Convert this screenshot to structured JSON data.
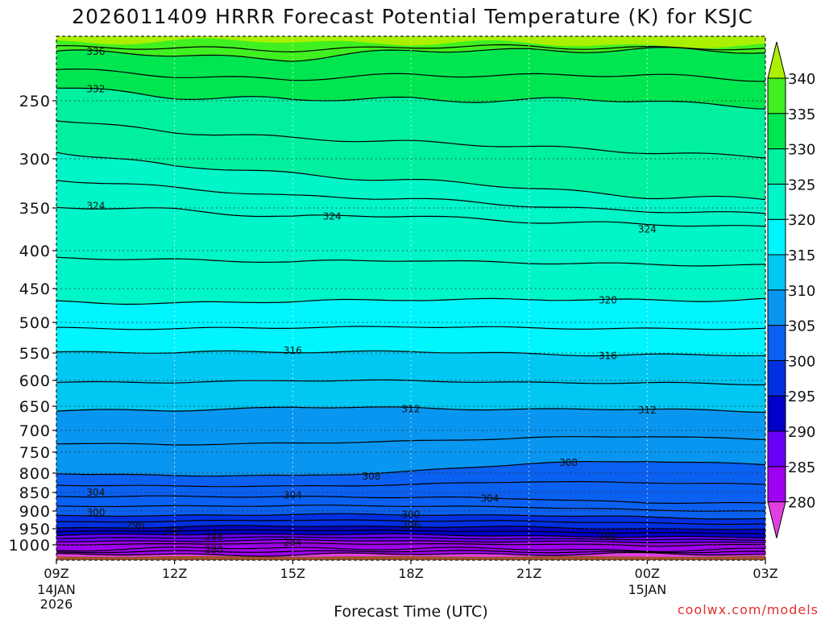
{
  "chart_data": {
    "type": "heatmap",
    "title": "2026011409 HRRR Forecast Potential Temperature (K) for KSJC",
    "xlabel": "Forecast Time (UTC)",
    "ylabel": "",
    "credit": "coolwx.com/models",
    "x_ticks": [
      {
        "hour": 0,
        "label": "09Z",
        "sub1": "14JAN",
        "sub2": "2026"
      },
      {
        "hour": 3,
        "label": "12Z",
        "sub1": "",
        "sub2": ""
      },
      {
        "hour": 6,
        "label": "15Z",
        "sub1": "",
        "sub2": ""
      },
      {
        "hour": 9,
        "label": "18Z",
        "sub1": "",
        "sub2": ""
      },
      {
        "hour": 12,
        "label": "21Z",
        "sub1": "",
        "sub2": ""
      },
      {
        "hour": 15,
        "label": "00Z",
        "sub1": "15JAN",
        "sub2": ""
      },
      {
        "hour": 18,
        "label": "03Z",
        "sub1": "",
        "sub2": ""
      }
    ],
    "y_ticks": [
      250,
      300,
      350,
      400,
      450,
      500,
      550,
      600,
      650,
      700,
      750,
      800,
      850,
      900,
      950,
      1000
    ],
    "xlim": [
      0,
      18
    ],
    "ylim_hpa": [
      1025,
      200
    ],
    "colorbar": {
      "levels": [
        275,
        280,
        285,
        290,
        295,
        300,
        305,
        310,
        315,
        320,
        325,
        330,
        335,
        340,
        345
      ],
      "labels": [
        280,
        285,
        290,
        295,
        300,
        305,
        310,
        315,
        320,
        325,
        330,
        335,
        340
      ],
      "colors": [
        "#e040e0",
        "#a000f0",
        "#6a00f8",
        "#0000c8",
        "#0030e0",
        "#0a60f0",
        "#0896f0",
        "#00c8f2",
        "#00f5ff",
        "#00f5c8",
        "#00f0a0",
        "#00e650",
        "#40f020",
        "#aaf000"
      ]
    },
    "ground_color": "#a0522d",
    "contour_labels": [
      {
        "value": "336",
        "hour": 1.0,
        "hpa": 212
      },
      {
        "value": "332",
        "hour": 1.0,
        "hpa": 241
      },
      {
        "value": "324",
        "hour": 1.0,
        "hpa": 348
      },
      {
        "value": "324",
        "hour": 7.0,
        "hpa": 360
      },
      {
        "value": "324",
        "hour": 15.0,
        "hpa": 375
      },
      {
        "value": "320",
        "hour": 14.0,
        "hpa": 467
      },
      {
        "value": "316",
        "hour": 6.0,
        "hpa": 546
      },
      {
        "value": "316",
        "hour": 14.0,
        "hpa": 555
      },
      {
        "value": "312",
        "hour": 9.0,
        "hpa": 656
      },
      {
        "value": "312",
        "hour": 15.0,
        "hpa": 658
      },
      {
        "value": "308",
        "hour": 8.0,
        "hpa": 808
      },
      {
        "value": "308",
        "hour": 13.0,
        "hpa": 775
      },
      {
        "value": "304",
        "hour": 1.0,
        "hpa": 850
      },
      {
        "value": "304",
        "hour": 6.0,
        "hpa": 858
      },
      {
        "value": "304",
        "hour": 11.0,
        "hpa": 866
      },
      {
        "value": "300",
        "hour": 1.0,
        "hpa": 905
      },
      {
        "value": "300",
        "hour": 9.0,
        "hpa": 910
      },
      {
        "value": "296",
        "hour": 2.0,
        "hpa": 940
      },
      {
        "value": "296",
        "hour": 9.0,
        "hpa": 940
      },
      {
        "value": "292",
        "hour": 3.0,
        "hpa": 960
      },
      {
        "value": "292",
        "hour": 14.0,
        "hpa": 972
      },
      {
        "value": "288",
        "hour": 4.0,
        "hpa": 975
      },
      {
        "value": "284",
        "hour": 6.0,
        "hpa": 992
      },
      {
        "value": "280",
        "hour": 4.0,
        "hpa": 1008
      }
    ]
  }
}
